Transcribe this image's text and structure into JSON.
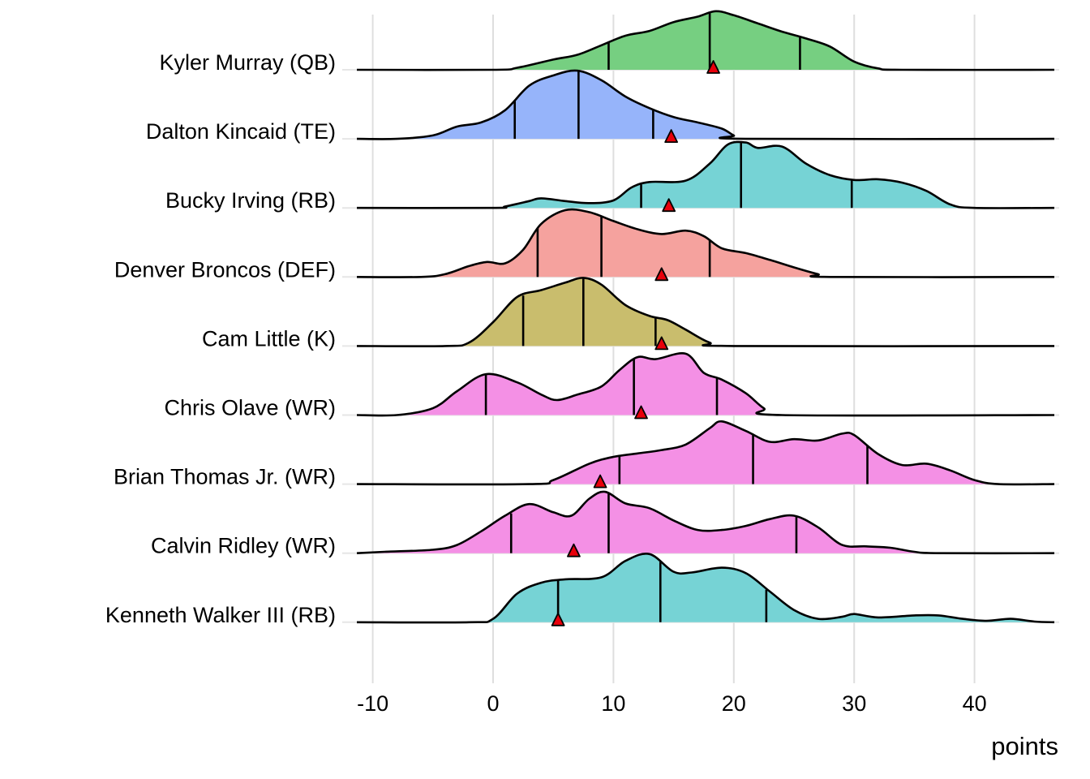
{
  "chart_data": {
    "type": "ridgeline",
    "title": "",
    "xlabel": "points",
    "ylabel": "",
    "xlim": [
      -12,
      47
    ],
    "xticks": [
      -10,
      0,
      10,
      20,
      30,
      40
    ],
    "xtick_labels": [
      "-10",
      "0",
      "10",
      "20",
      "30",
      "40"
    ],
    "grid": true,
    "legend": "none",
    "marker_color": "#E8000B",
    "series": [
      {
        "name": "Kyler Murray (QB)",
        "color": "#73CE7E",
        "quantiles": [
          9.6,
          18.0,
          25.5
        ],
        "marker": 18.3,
        "density": [
          [
            -12,
            0
          ],
          [
            0,
            0.0
          ],
          [
            2,
            0.03
          ],
          [
            5,
            0.15
          ],
          [
            7,
            0.22
          ],
          [
            9,
            0.36
          ],
          [
            11,
            0.5
          ],
          [
            13,
            0.57
          ],
          [
            15,
            0.7
          ],
          [
            17,
            0.78
          ],
          [
            18.5,
            0.86
          ],
          [
            20,
            0.8
          ],
          [
            22,
            0.68
          ],
          [
            24,
            0.56
          ],
          [
            26,
            0.46
          ],
          [
            28,
            0.34
          ],
          [
            30,
            0.12
          ],
          [
            32,
            0.02
          ],
          [
            34,
            0
          ],
          [
            47,
            0
          ]
        ]
      },
      {
        "name": "Dalton Kincaid (TE)",
        "color": "#94B3FA",
        "quantiles": [
          1.8,
          7.1,
          13.3
        ],
        "marker": 14.8,
        "density": [
          [
            -12,
            0
          ],
          [
            -8,
            0
          ],
          [
            -5,
            0.05
          ],
          [
            -3,
            0.18
          ],
          [
            -1,
            0.24
          ],
          [
            1,
            0.42
          ],
          [
            3,
            0.78
          ],
          [
            5,
            0.93
          ],
          [
            7,
            1.0
          ],
          [
            9,
            0.86
          ],
          [
            11,
            0.62
          ],
          [
            13,
            0.45
          ],
          [
            15,
            0.32
          ],
          [
            17,
            0.24
          ],
          [
            19,
            0.15
          ],
          [
            20,
            0.05
          ],
          [
            21,
            0
          ],
          [
            47,
            0
          ]
        ]
      },
      {
        "name": "Bucky Irving (RB)",
        "color": "#73D2D4",
        "quantiles": [
          12.3,
          20.6,
          29.8
        ],
        "marker": 14.6,
        "density": [
          [
            -12,
            0
          ],
          [
            0,
            0
          ],
          [
            1,
            0.02
          ],
          [
            3,
            0.1
          ],
          [
            4,
            0.14
          ],
          [
            6,
            0.1
          ],
          [
            8,
            0.07
          ],
          [
            10,
            0.11
          ],
          [
            11.5,
            0.3
          ],
          [
            13,
            0.38
          ],
          [
            16,
            0.4
          ],
          [
            18,
            0.65
          ],
          [
            19.5,
            0.93
          ],
          [
            21,
            0.96
          ],
          [
            22,
            0.88
          ],
          [
            24,
            0.9
          ],
          [
            26,
            0.65
          ],
          [
            28,
            0.48
          ],
          [
            30,
            0.41
          ],
          [
            32,
            0.42
          ],
          [
            34,
            0.37
          ],
          [
            36,
            0.25
          ],
          [
            38,
            0.05
          ],
          [
            40,
            0
          ],
          [
            47,
            0
          ]
        ]
      },
      {
        "name": "Denver Broncos (DEF)",
        "color": "#F5A09C",
        "quantiles": [
          3.7,
          9.0,
          18.0
        ],
        "marker": 14.0,
        "density": [
          [
            -12,
            0
          ],
          [
            -6,
            0
          ],
          [
            -4,
            0.04
          ],
          [
            -2,
            0.16
          ],
          [
            -0.5,
            0.22
          ],
          [
            1,
            0.2
          ],
          [
            2.5,
            0.4
          ],
          [
            4,
            0.78
          ],
          [
            6,
            0.98
          ],
          [
            8,
            0.95
          ],
          [
            10,
            0.82
          ],
          [
            12,
            0.7
          ],
          [
            14,
            0.63
          ],
          [
            16,
            0.68
          ],
          [
            17.5,
            0.6
          ],
          [
            19,
            0.42
          ],
          [
            21,
            0.35
          ],
          [
            23,
            0.25
          ],
          [
            25,
            0.14
          ],
          [
            27,
            0.04
          ],
          [
            28,
            0
          ],
          [
            47,
            0
          ]
        ]
      },
      {
        "name": "Cam Little (K)",
        "color": "#C8BC6A",
        "quantiles": [
          2.5,
          7.5,
          13.5
        ],
        "marker": 14.0,
        "density": [
          [
            -12,
            0
          ],
          [
            -4,
            0
          ],
          [
            -2,
            0.05
          ],
          [
            0,
            0.35
          ],
          [
            2,
            0.72
          ],
          [
            4,
            0.82
          ],
          [
            6,
            0.93
          ],
          [
            7.5,
            1.0
          ],
          [
            9,
            0.9
          ],
          [
            11,
            0.6
          ],
          [
            13,
            0.44
          ],
          [
            14.5,
            0.38
          ],
          [
            16,
            0.24
          ],
          [
            18,
            0.05
          ],
          [
            20,
            0
          ],
          [
            47,
            0
          ]
        ]
      },
      {
        "name": "Chris Olave (WR)",
        "color": "#F48EE4",
        "quantiles": [
          -0.6,
          11.7,
          18.6
        ],
        "marker": 12.3,
        "density": [
          [
            -12,
            0
          ],
          [
            -8,
            0
          ],
          [
            -5,
            0.1
          ],
          [
            -3,
            0.35
          ],
          [
            -0.6,
            0.6
          ],
          [
            2,
            0.48
          ],
          [
            4,
            0.3
          ],
          [
            5.3,
            0.22
          ],
          [
            7,
            0.3
          ],
          [
            9,
            0.42
          ],
          [
            10.5,
            0.66
          ],
          [
            12,
            0.85
          ],
          [
            13.5,
            0.82
          ],
          [
            16,
            0.9
          ],
          [
            17.5,
            0.62
          ],
          [
            19,
            0.52
          ],
          [
            21,
            0.32
          ],
          [
            22.5,
            0.1
          ],
          [
            24,
            0
          ],
          [
            47,
            0
          ]
        ]
      },
      {
        "name": "Brian Thomas Jr. (WR)",
        "color": "#F48EE4",
        "quantiles": [
          10.5,
          21.6,
          31.1
        ],
        "marker": 8.9,
        "density": [
          [
            -12,
            0
          ],
          [
            3,
            0
          ],
          [
            5,
            0.06
          ],
          [
            8,
            0.3
          ],
          [
            10,
            0.4
          ],
          [
            12,
            0.45
          ],
          [
            14,
            0.5
          ],
          [
            16,
            0.58
          ],
          [
            18,
            0.82
          ],
          [
            19,
            0.92
          ],
          [
            21,
            0.78
          ],
          [
            23,
            0.62
          ],
          [
            25,
            0.66
          ],
          [
            27,
            0.64
          ],
          [
            29,
            0.74
          ],
          [
            30,
            0.72
          ],
          [
            32,
            0.44
          ],
          [
            34,
            0.28
          ],
          [
            36,
            0.3
          ],
          [
            38,
            0.2
          ],
          [
            40,
            0.06
          ],
          [
            42,
            0
          ],
          [
            47,
            0
          ]
        ]
      },
      {
        "name": "Calvin Ridley (WR)",
        "color": "#F48EE4",
        "quantiles": [
          1.5,
          9.6,
          25.2
        ],
        "marker": 6.7,
        "density": [
          [
            -12,
            0
          ],
          [
            -9,
            0.02
          ],
          [
            -5,
            0.05
          ],
          [
            -3,
            0.12
          ],
          [
            -1,
            0.32
          ],
          [
            1,
            0.55
          ],
          [
            3,
            0.72
          ],
          [
            5,
            0.6
          ],
          [
            6.5,
            0.55
          ],
          [
            8,
            0.8
          ],
          [
            9.3,
            0.9
          ],
          [
            11,
            0.73
          ],
          [
            13,
            0.66
          ],
          [
            15,
            0.48
          ],
          [
            17,
            0.34
          ],
          [
            19,
            0.34
          ],
          [
            21,
            0.4
          ],
          [
            23,
            0.5
          ],
          [
            25,
            0.55
          ],
          [
            27,
            0.38
          ],
          [
            29,
            0.12
          ],
          [
            31,
            0.1
          ],
          [
            33,
            0.08
          ],
          [
            35,
            0.02
          ],
          [
            37,
            0
          ],
          [
            47,
            0
          ]
        ]
      },
      {
        "name": "Kenneth Walker III (RB)",
        "color": "#73D2D4",
        "quantiles": [
          5.4,
          13.9,
          22.7
        ],
        "marker": 5.4,
        "density": [
          [
            -12,
            0
          ],
          [
            -2,
            0
          ],
          [
            0,
            0.05
          ],
          [
            2,
            0.42
          ],
          [
            4,
            0.58
          ],
          [
            6,
            0.63
          ],
          [
            9,
            0.66
          ],
          [
            11,
            0.9
          ],
          [
            13,
            1.0
          ],
          [
            15,
            0.74
          ],
          [
            16.5,
            0.73
          ],
          [
            19,
            0.8
          ],
          [
            21,
            0.72
          ],
          [
            23,
            0.45
          ],
          [
            25,
            0.18
          ],
          [
            27,
            0.05
          ],
          [
            29,
            0.08
          ],
          [
            30,
            0.12
          ],
          [
            32,
            0.07
          ],
          [
            35,
            0.1
          ],
          [
            37,
            0.1
          ],
          [
            39,
            0.05
          ],
          [
            41,
            0.02
          ],
          [
            43,
            0.05
          ],
          [
            45,
            0.01
          ],
          [
            47,
            0
          ]
        ]
      }
    ]
  }
}
